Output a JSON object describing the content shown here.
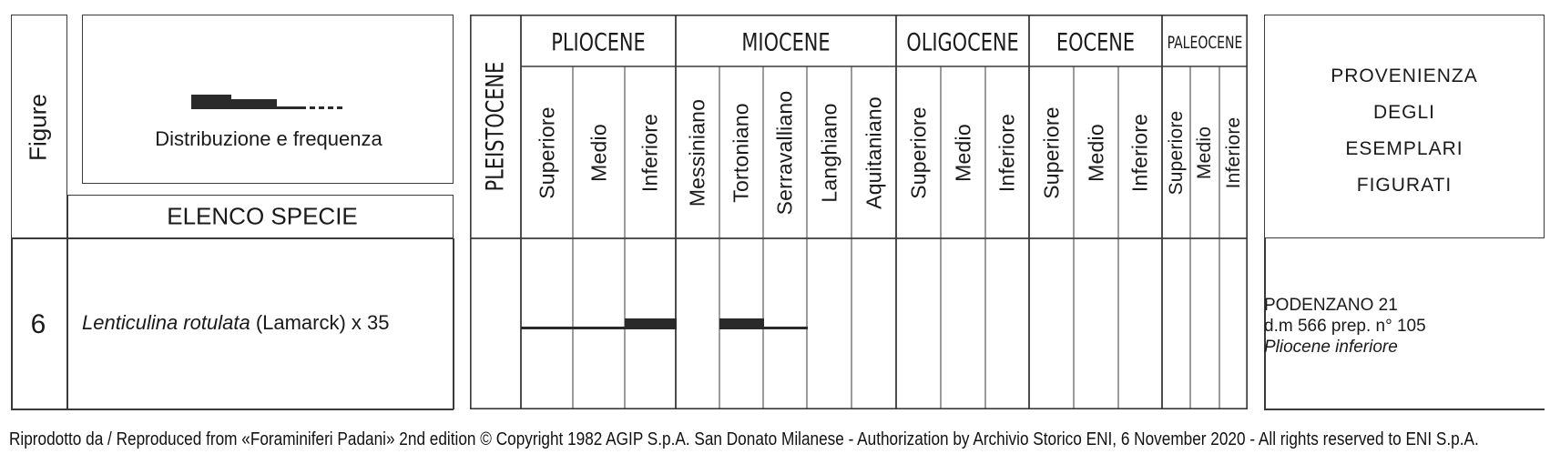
{
  "header": {
    "figure_label": "Figure",
    "distribution_label": "Distribuzione e frequenza",
    "species_list_label": "ELENCO SPECIE",
    "provenance_lines": [
      "PROVENIENZA",
      "DEGLI",
      "ESEMPLARI",
      "FIGURATI"
    ]
  },
  "periods": {
    "pleistocene": "PLEISTOCENE",
    "items": [
      {
        "name": "PLIOCENE",
        "stages": [
          "Superiore",
          "Medio",
          "Inferiore"
        ]
      },
      {
        "name": "MIOCENE",
        "stages": [
          "Messiniano",
          "Tortoniano",
          "Serravalliano",
          "Langhiano",
          "Aquitaniano"
        ]
      },
      {
        "name": "OLIGOCENE",
        "stages": [
          "Superiore",
          "Medio",
          "Inferiore"
        ]
      },
      {
        "name": "EOCENE",
        "stages": [
          "Superiore",
          "Medio",
          "Inferiore"
        ]
      },
      {
        "name": "PALEOCENE",
        "stages": [
          "Superiore",
          "Medio",
          "Inferiore"
        ]
      }
    ]
  },
  "species": [
    {
      "figure": "6",
      "name_italic": "Lenticulina rotulata",
      "author": "(Lamarck) x 35",
      "distribution": [
        {
          "period": "PLIOCENE",
          "stage": "Superiore",
          "frequency": "rare"
        },
        {
          "period": "PLIOCENE",
          "stage": "Medio",
          "frequency": "rare"
        },
        {
          "period": "PLIOCENE",
          "stage": "Inferiore",
          "frequency": "frequent"
        },
        {
          "period": "MIOCENE",
          "stage": "Tortoniano",
          "frequency": "frequent"
        },
        {
          "period": "MIOCENE",
          "stage": "Serravalliano",
          "frequency": "rare"
        }
      ],
      "provenance": [
        "PODENZANO 21",
        "d.m 566 prep. n° 105",
        "Pliocene inferiore"
      ]
    }
  ],
  "footer": "Riprodotto da / Reproduced from «Foraminiferi Padani» 2nd edition © Copyright 1982 AGIP S.p.A. San Donato Milanese - Authorization by Archivio Storico ENI, 6 November 2020 - All rights reserved to ENI S.p.A."
}
